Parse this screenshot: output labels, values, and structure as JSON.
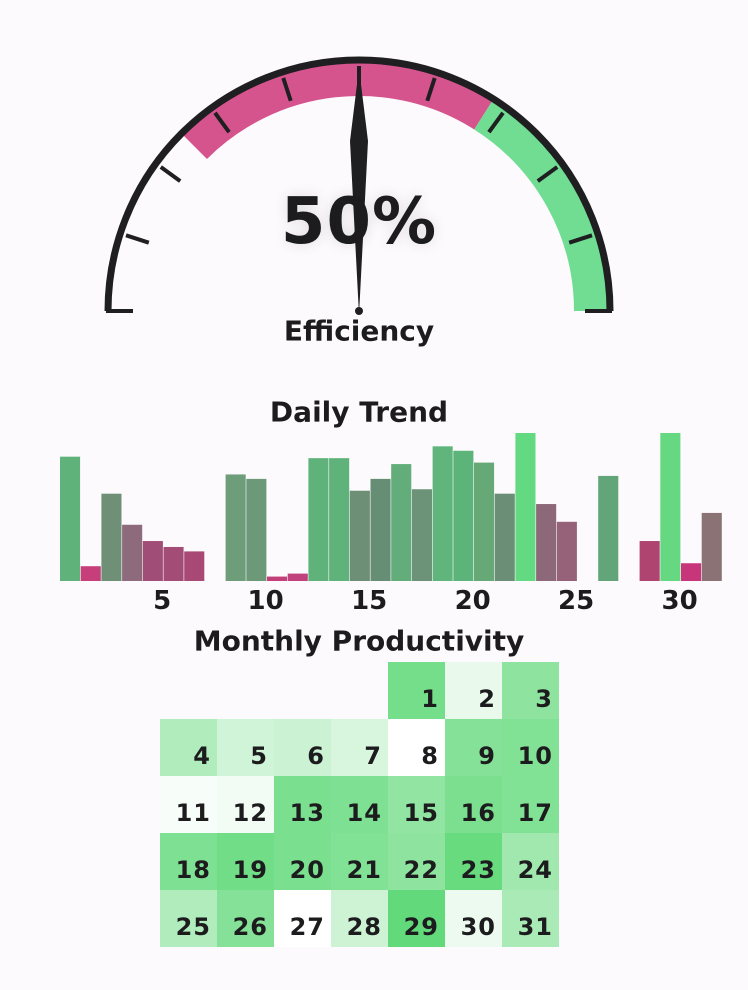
{
  "chart_data": [
    {
      "type": "gauge",
      "value": 50,
      "value_label": "50%",
      "label": "Efficiency",
      "range": [
        0,
        100
      ],
      "bands": [
        {
          "from": 0,
          "to": 25,
          "color": "#ffffff"
        },
        {
          "from": 25,
          "to": 68,
          "color": "#d6548e"
        },
        {
          "from": 68,
          "to": 100,
          "color": "#70dd93"
        }
      ]
    },
    {
      "type": "bar",
      "title": "Daily Trend",
      "x_ticks": [
        "5",
        "10",
        "15",
        "20",
        "25",
        "30"
      ],
      "days": [
        1,
        2,
        3,
        4,
        5,
        6,
        7,
        8,
        9,
        10,
        11,
        12,
        13,
        14,
        15,
        16,
        17,
        18,
        19,
        20,
        21,
        22,
        23,
        24,
        25,
        26,
        27,
        28,
        29,
        30,
        31,
        32
      ],
      "values": [
        84,
        10,
        59,
        38,
        27,
        23,
        20,
        0,
        72,
        69,
        3,
        5,
        83,
        83,
        61,
        69,
        79,
        62,
        91,
        88,
        80,
        59,
        100,
        52,
        40,
        0,
        71,
        0,
        27,
        100,
        12,
        46
      ],
      "colors": [
        "#5fb27a",
        "#c63f7b",
        "#6f8f76",
        "#8d6a7c",
        "#a04e77",
        "#a34c76",
        "#a74974",
        "#ffffff",
        "#6d9d79",
        "#6c9978",
        "#c33f79",
        "#c0417b",
        "#5fb27a",
        "#5fb27a",
        "#6c8f75",
        "#668e75",
        "#62ad79",
        "#6c9277",
        "#5fb57b",
        "#5db47a",
        "#66a977",
        "#6a8f76",
        "#63d982",
        "#8d6879",
        "#956279",
        "#ffffff",
        "#62a578",
        "#ffffff",
        "#b04471",
        "#66d882",
        "#c7357a",
        "#8a7275"
      ],
      "ylim": [
        0,
        100
      ]
    },
    {
      "type": "heatmap",
      "title": "Monthly Productivity",
      "start_offset": 4,
      "days": [
        {
          "day": "1",
          "value": 88
        },
        {
          "day": "2",
          "value": 14
        },
        {
          "day": "3",
          "value": 72
        },
        {
          "day": "4",
          "value": 50
        },
        {
          "day": "5",
          "value": 30
        },
        {
          "day": "6",
          "value": 33
        },
        {
          "day": "7",
          "value": 25
        },
        {
          "day": "8",
          "value": 0
        },
        {
          "day": "9",
          "value": 78
        },
        {
          "day": "10",
          "value": 80
        },
        {
          "day": "11",
          "value": 5
        },
        {
          "day": "12",
          "value": 8
        },
        {
          "day": "13",
          "value": 85
        },
        {
          "day": "14",
          "value": 82
        },
        {
          "day": "15",
          "value": 70
        },
        {
          "day": "16",
          "value": 84
        },
        {
          "day": "17",
          "value": 80
        },
        {
          "day": "18",
          "value": 82
        },
        {
          "day": "19",
          "value": 90
        },
        {
          "day": "20",
          "value": 85
        },
        {
          "day": "21",
          "value": 80
        },
        {
          "day": "22",
          "value": 72
        },
        {
          "day": "23",
          "value": 96
        },
        {
          "day": "24",
          "value": 60
        },
        {
          "day": "25",
          "value": 50
        },
        {
          "day": "26",
          "value": 78
        },
        {
          "day": "27",
          "value": 0
        },
        {
          "day": "28",
          "value": 32
        },
        {
          "day": "29",
          "value": 100
        },
        {
          "day": "30",
          "value": 12
        },
        {
          "day": "31",
          "value": 55
        }
      ]
    }
  ]
}
